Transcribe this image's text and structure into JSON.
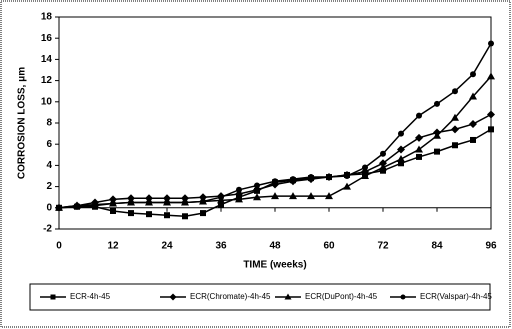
{
  "chart_data": {
    "type": "line",
    "xlabel": "TIME (weeks)",
    "ylabel": "CORROSION LOSS, μm",
    "x": [
      0,
      4,
      8,
      12,
      16,
      20,
      24,
      28,
      32,
      36,
      40,
      44,
      48,
      52,
      56,
      60,
      64,
      68,
      72,
      76,
      80,
      84,
      88,
      92,
      96
    ],
    "xlim": [
      0,
      96
    ],
    "xticks": [
      0,
      12,
      24,
      36,
      48,
      60,
      72,
      84,
      96
    ],
    "ylim": [
      -2,
      18
    ],
    "yticks": [
      -2,
      0,
      2,
      4,
      6,
      8,
      10,
      12,
      14,
      16,
      18
    ],
    "grid": false,
    "legend": "bottom",
    "series": [
      {
        "name": "ECR-4h-45",
        "color": "#000000",
        "marker": "square",
        "values": [
          0,
          0.1,
          0.1,
          -0.3,
          -0.5,
          -0.6,
          -0.7,
          -0.8,
          -0.5,
          0.3,
          1.0,
          1.6,
          2.4,
          2.6,
          2.8,
          2.9,
          3.1,
          3.2,
          3.5,
          4.2,
          4.8,
          5.3,
          5.9,
          6.4,
          7.4
        ]
      },
      {
        "name": "ECR(Chromate)-4h-45",
        "color": "#000000",
        "marker": "diamond",
        "values": [
          0,
          0.2,
          0.5,
          0.8,
          0.9,
          0.9,
          0.9,
          0.9,
          1.0,
          1.1,
          1.3,
          1.7,
          2.2,
          2.5,
          2.7,
          2.9,
          3.1,
          3.4,
          4.2,
          5.5,
          6.6,
          7.1,
          7.4,
          7.9,
          8.8
        ]
      },
      {
        "name": "ECR(DuPont)-4h-45",
        "color": "#000000",
        "marker": "triangle",
        "values": [
          0,
          0.2,
          0.3,
          0.4,
          0.5,
          0.5,
          0.5,
          0.5,
          0.6,
          0.7,
          0.8,
          1.0,
          1.1,
          1.1,
          1.1,
          1.1,
          2.0,
          3.0,
          3.8,
          4.6,
          5.5,
          6.8,
          8.5,
          10.5,
          12.4
        ]
      },
      {
        "name": "ECR(Valspar)-4h-45",
        "color": "#000000",
        "marker": "circle",
        "values": [
          0,
          0.1,
          0.2,
          0.4,
          0.5,
          0.5,
          0.5,
          0.5,
          0.6,
          1.0,
          1.7,
          2.1,
          2.5,
          2.7,
          2.9,
          2.9,
          3.0,
          3.8,
          5.1,
          7.0,
          8.7,
          9.8,
          11.0,
          12.6,
          15.5
        ]
      }
    ]
  }
}
